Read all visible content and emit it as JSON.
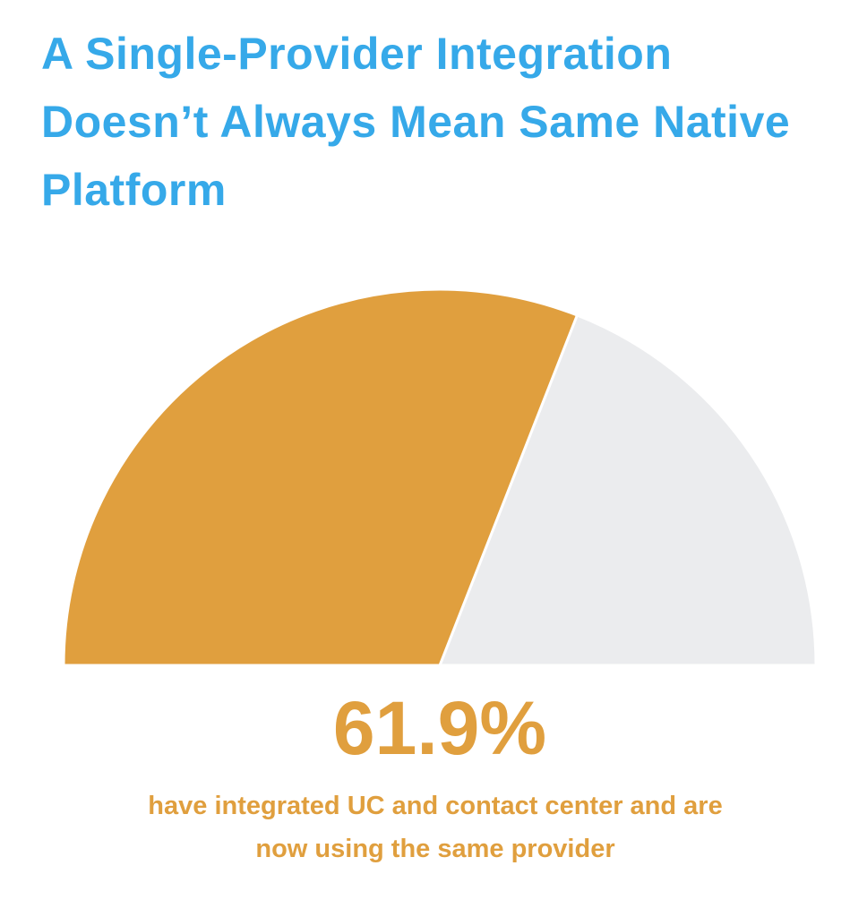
{
  "chart_data": {
    "type": "gauge",
    "title": "A Single-Provider Integration Doesn’t Always Mean Same Native Platform",
    "values": [
      61.9
    ],
    "value_labels": [
      "61.9%"
    ],
    "range": [
      0,
      100
    ],
    "caption": "have integrated UC and contact center and are now using the same provider",
    "color": "#e09f3e",
    "track_color": "#ebecee",
    "title_color": "#36a9e9"
  }
}
